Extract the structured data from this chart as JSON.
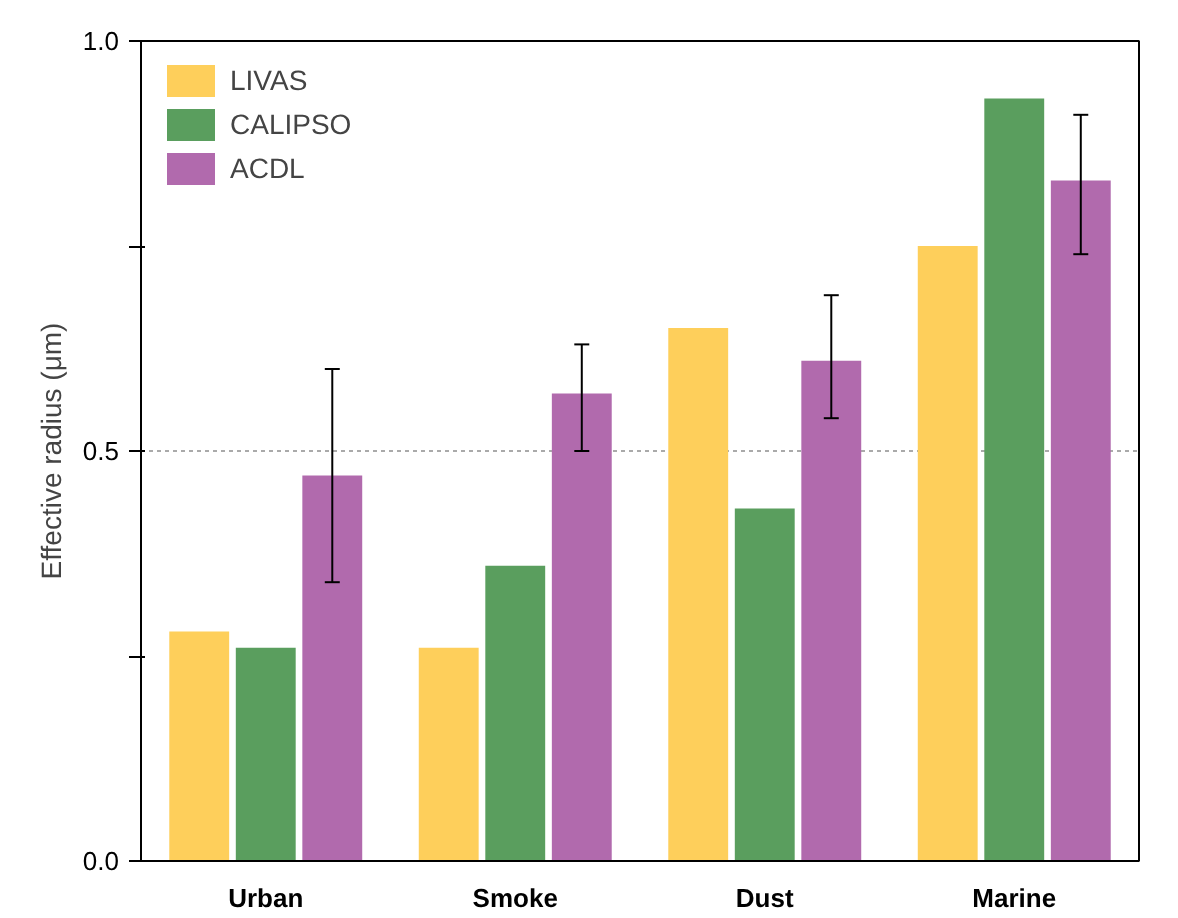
{
  "chart_data": {
    "type": "bar",
    "ylabel": "Effective radius (μm)",
    "categories": [
      "Urban",
      "Smoke",
      "Dust",
      "Marine"
    ],
    "series": [
      {
        "name": "LIVAS",
        "color": "#fecf5b",
        "values": [
          0.28,
          0.26,
          0.65,
          0.75
        ]
      },
      {
        "name": "CALIPSO",
        "color": "#5a9e5e",
        "values": [
          0.26,
          0.36,
          0.43,
          0.93
        ]
      },
      {
        "name": "ACDL",
        "color": "#b16aad",
        "values": [
          0.47,
          0.57,
          0.61,
          0.83
        ],
        "errors": [
          [
            0.34,
            0.6
          ],
          [
            0.5,
            0.63
          ],
          [
            0.54,
            0.69
          ],
          [
            0.74,
            0.91
          ]
        ]
      }
    ],
    "ylim": [
      0,
      1
    ],
    "yticks": [
      {
        "value": 0,
        "label": "0.0"
      },
      {
        "value": 0.25,
        "label": null
      },
      {
        "value": 0.5,
        "label": "0.5"
      },
      {
        "value": 0.75,
        "label": null
      },
      {
        "value": 1,
        "label": "1.0"
      }
    ],
    "grid": "y",
    "legend": "top left"
  }
}
